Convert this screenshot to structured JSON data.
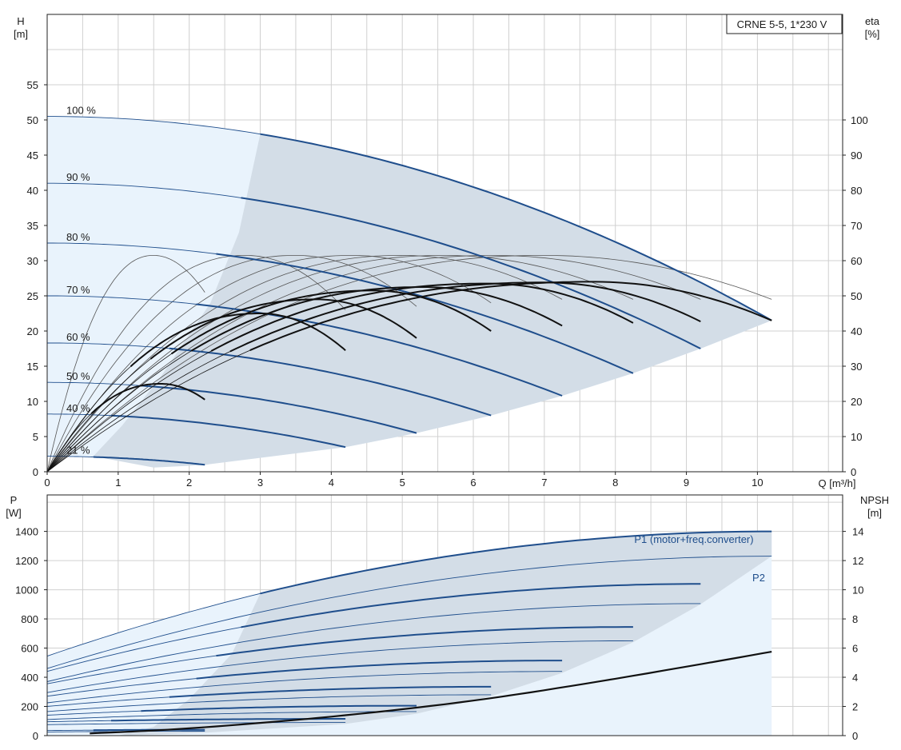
{
  "colors": {
    "curve": "#1f4e8c",
    "grid": "#d0d0d0",
    "frame": "#222222",
    "region_dark": "#d3dde7",
    "region_light": "#e9f3fc",
    "eff": "#111111",
    "eff_thin": "#555555"
  },
  "chart_data": [
    {
      "type": "line",
      "title": "CRNE 5-5, 1*230 V",
      "xlabel": "Q [m³/h]",
      "ylabel_top": "H",
      "ylabel_unit": "[m]",
      "y2label_top": "eta",
      "y2label_unit": "[%]",
      "xlim": [
        0,
        11.2
      ],
      "ylim": [
        0,
        65
      ],
      "y2lim": [
        0,
        130
      ],
      "xticks": [
        0,
        1,
        2,
        3,
        4,
        5,
        6,
        7,
        8,
        9,
        10
      ],
      "yticks": [
        0,
        5,
        10,
        15,
        20,
        25,
        30,
        35,
        40,
        45,
        50,
        55
      ],
      "y2ticks": [
        0,
        10,
        20,
        30,
        40,
        50,
        60,
        70,
        80,
        90,
        100
      ],
      "grid": true,
      "head_curves": [
        {
          "name": "100 %",
          "shut_off": 50.5,
          "q_max": 10.2,
          "h_end": 21.5
        },
        {
          "name": "90 %",
          "shut_off": 41.0,
          "q_max": 9.2,
          "h_end": 17.5
        },
        {
          "name": "80 %",
          "shut_off": 32.5,
          "q_max": 8.25,
          "h_end": 14.0
        },
        {
          "name": "70 %",
          "shut_off": 25.0,
          "q_max": 7.25,
          "h_end": 10.8
        },
        {
          "name": "60 %",
          "shut_off": 18.3,
          "q_max": 6.25,
          "h_end": 8.0
        },
        {
          "name": "50 %",
          "shut_off": 12.7,
          "q_max": 5.2,
          "h_end": 5.5
        },
        {
          "name": "40 %",
          "shut_off": 8.2,
          "q_max": 4.2,
          "h_end": 3.5
        },
        {
          "name": "21 %",
          "shut_off": 2.2,
          "q_max": 2.22,
          "h_end": 1.0
        }
      ],
      "efficiency_curves": [
        {
          "q_max": 2.22,
          "eta_peak": 25,
          "q_peak": 1.6,
          "eta_end": 20.5
        },
        {
          "q_max": 4.2,
          "eta_peak": 45,
          "q_peak": 3.0,
          "eta_end": 34.5
        },
        {
          "q_max": 5.2,
          "eta_peak": 49,
          "q_peak": 3.8,
          "eta_end": 38.0
        },
        {
          "q_max": 6.25,
          "eta_peak": 51.5,
          "q_peak": 4.6,
          "eta_end": 40.0
        },
        {
          "q_max": 7.25,
          "eta_peak": 52.5,
          "q_peak": 5.3,
          "eta_end": 41.5
        },
        {
          "q_max": 8.25,
          "eta_peak": 53.5,
          "q_peak": 6.2,
          "eta_end": 42.3
        },
        {
          "q_max": 9.2,
          "eta_peak": 53.8,
          "q_peak": 7.0,
          "eta_end": 42.7
        },
        {
          "q_max": 10.2,
          "eta_peak": 54.0,
          "q_peak": 7.7,
          "eta_end": 43.0
        }
      ],
      "thin_efficiency_curves": [
        {
          "q_max": 2.22,
          "eta_peak": 61.5,
          "q_peak": 1.5,
          "eta_end": 51
        },
        {
          "q_max": 4.2,
          "eta_peak": 61.5,
          "q_peak": 2.8,
          "eta_end": 46
        },
        {
          "q_max": 5.2,
          "eta_peak": 61.5,
          "q_peak": 3.5,
          "eta_end": 47
        },
        {
          "q_max": 6.25,
          "eta_peak": 61.5,
          "q_peak": 4.3,
          "eta_end": 48
        },
        {
          "q_max": 7.25,
          "eta_peak": 61.5,
          "q_peak": 5.0,
          "eta_end": 49
        },
        {
          "q_max": 8.25,
          "eta_peak": 61.5,
          "q_peak": 5.6,
          "eta_end": 49
        },
        {
          "q_max": 9.2,
          "eta_peak": 61.5,
          "q_peak": 6.3,
          "eta_end": 49
        },
        {
          "q_max": 10.2,
          "eta_peak": 61.5,
          "q_peak": 7.0,
          "eta_end": 49
        }
      ]
    },
    {
      "type": "line",
      "xlabel": "",
      "ylabel_top": "P",
      "ylabel_unit": "[W]",
      "y2label_top": "NPSH",
      "y2label_unit": "[m]",
      "xlim": [
        0,
        11.2
      ],
      "ylim": [
        0,
        1650
      ],
      "y2lim": [
        0,
        16.5
      ],
      "yticks": [
        0,
        200,
        400,
        600,
        800,
        1000,
        1200,
        1400
      ],
      "y2ticks": [
        0,
        2,
        4,
        6,
        8,
        10,
        12,
        14
      ],
      "grid": true,
      "series_labels": {
        "p1": "P1 (motor+freq.converter)",
        "p2": "P2"
      },
      "p1_curves": [
        {
          "p0": 545,
          "q_max": 10.2,
          "p_end": 1400
        },
        {
          "p0": 440,
          "q_max": 9.2,
          "p_end": 1040
        },
        {
          "p0": 355,
          "q_max": 8.25,
          "p_end": 745
        },
        {
          "p0": 270,
          "q_max": 7.25,
          "p_end": 515
        },
        {
          "p0": 200,
          "q_max": 6.25,
          "p_end": 335
        },
        {
          "p0": 140,
          "q_max": 5.2,
          "p_end": 205
        },
        {
          "p0": 95,
          "q_max": 4.2,
          "p_end": 115
        },
        {
          "p0": 35,
          "q_max": 2.22,
          "p_end": 40
        }
      ],
      "p2_curves": [
        {
          "p0": 460,
          "q_max": 10.2,
          "p_end": 1230
        },
        {
          "p0": 370,
          "q_max": 9.2,
          "p_end": 905
        },
        {
          "p0": 295,
          "q_max": 8.25,
          "p_end": 650
        },
        {
          "p0": 225,
          "q_max": 7.25,
          "p_end": 440
        },
        {
          "p0": 165,
          "q_max": 6.25,
          "p_end": 280
        },
        {
          "p0": 110,
          "q_max": 5.2,
          "p_end": 165
        },
        {
          "p0": 75,
          "q_max": 4.2,
          "p_end": 90
        },
        {
          "p0": 25,
          "q_max": 2.22,
          "p_end": 30
        }
      ],
      "npsh": {
        "q": [
          0.6,
          2,
          4,
          6,
          8,
          10.2
        ],
        "values": [
          0.15,
          0.5,
          1.3,
          2.4,
          3.9,
          5.75
        ]
      }
    }
  ]
}
